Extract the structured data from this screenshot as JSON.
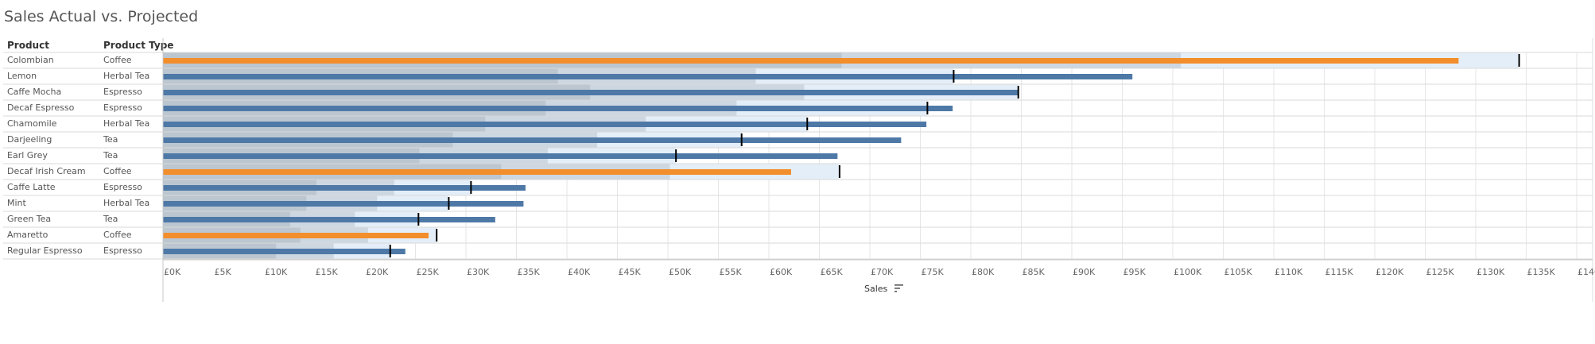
{
  "title": "Sales Actual vs. Projected",
  "headers": {
    "product": "Product",
    "product_type": "Product Type"
  },
  "axis_title": "Sales",
  "colors": {
    "actual": "#4e79a7",
    "actual_highlight": "#f28e2b",
    "band_dark": "#bcc6d0",
    "band_mid": "#cdd7e2",
    "band_light": "#e4eef8",
    "target": "#000000",
    "grid": "#e6e6e6"
  },
  "chart_data": {
    "type": "bar",
    "subtype": "bullet",
    "xlabel": "Sales",
    "xlim": [
      0,
      140000
    ],
    "x_ticks": [
      "£0K",
      "£5K",
      "£10K",
      "£15K",
      "£20K",
      "£25K",
      "£30K",
      "£35K",
      "£40K",
      "£45K",
      "£50K",
      "£55K",
      "£60K",
      "£65K",
      "£70K",
      "£75K",
      "£80K",
      "£85K",
      "£90K",
      "£95K",
      "£100K",
      "£105K",
      "£110K",
      "£115K",
      "£120K",
      "£125K",
      "£130K",
      "£135K",
      "£140K"
    ],
    "rows": [
      {
        "product": "Colombian",
        "type": "Coffee",
        "actual": 128300,
        "target": 134300,
        "bands": [
          67200,
          100800,
          134300
        ],
        "highlight": true
      },
      {
        "product": "Lemon",
        "type": "Herbal Tea",
        "actual": 96000,
        "target": 78300,
        "bands": [
          39100,
          58700,
          78300
        ],
        "highlight": false
      },
      {
        "product": "Caffe Mocha",
        "type": "Espresso",
        "actual": 84700,
        "target": 84700,
        "bands": [
          42300,
          63500,
          84700
        ],
        "highlight": false
      },
      {
        "product": "Decaf Espresso",
        "type": "Espresso",
        "actual": 78200,
        "target": 75700,
        "bands": [
          37900,
          56800,
          75700
        ],
        "highlight": false
      },
      {
        "product": "Chamomile",
        "type": "Herbal Tea",
        "actual": 75600,
        "target": 63800,
        "bands": [
          31900,
          47800,
          63800
        ],
        "highlight": false
      },
      {
        "product": "Darjeeling",
        "type": "Tea",
        "actual": 73100,
        "target": 57300,
        "bands": [
          28700,
          43000,
          57300
        ],
        "highlight": false
      },
      {
        "product": "Earl Grey",
        "type": "Tea",
        "actual": 66800,
        "target": 50800,
        "bands": [
          25400,
          38100,
          50800
        ],
        "highlight": false
      },
      {
        "product": "Decaf Irish Cream",
        "type": "Coffee",
        "actual": 62200,
        "target": 67000,
        "bands": [
          33500,
          50200,
          67000
        ],
        "highlight": true
      },
      {
        "product": "Caffe Latte",
        "type": "Espresso",
        "actual": 35900,
        "target": 30500,
        "bands": [
          15200,
          22900,
          30500
        ],
        "highlight": false
      },
      {
        "product": "Mint",
        "type": "Herbal Tea",
        "actual": 35700,
        "target": 28300,
        "bands": [
          14200,
          21200,
          28300
        ],
        "highlight": false
      },
      {
        "product": "Green Tea",
        "type": "Tea",
        "actual": 32900,
        "target": 25300,
        "bands": [
          12600,
          19000,
          25300
        ],
        "highlight": false
      },
      {
        "product": "Amaretto",
        "type": "Coffee",
        "actual": 26300,
        "target": 27100,
        "bands": [
          13600,
          20300,
          27100
        ],
        "highlight": true
      },
      {
        "product": "Regular Espresso",
        "type": "Espresso",
        "actual": 24000,
        "target": 22500,
        "bands": [
          11200,
          16900,
          22500
        ],
        "highlight": false
      }
    ]
  }
}
